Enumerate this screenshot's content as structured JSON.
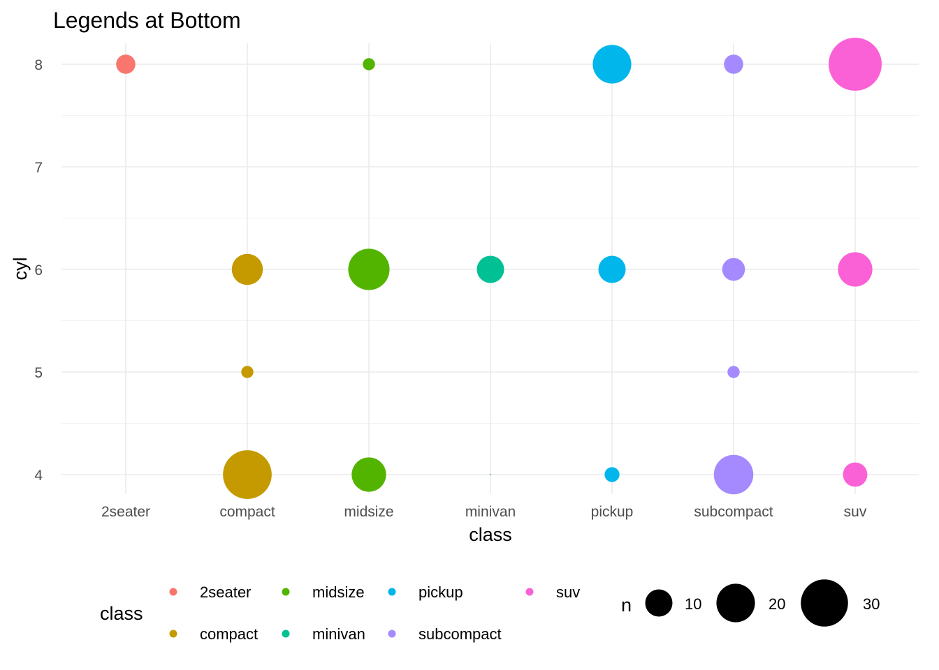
{
  "chart_data": {
    "type": "scatter",
    "title": "Legends at Bottom",
    "xlabel": "class",
    "ylabel": "cyl",
    "categories": [
      "2seater",
      "compact",
      "midsize",
      "minivan",
      "pickup",
      "subcompact",
      "suv"
    ],
    "yticks": [
      4,
      5,
      6,
      7,
      8
    ],
    "ylim": [
      3.8,
      8.2
    ],
    "grid": true,
    "legend_position": "bottom",
    "colors": {
      "2seater": "#F8766D",
      "compact": "#C49A00",
      "midsize": "#53B400",
      "minivan": "#00C094",
      "pickup": "#00B6EB",
      "subcompact": "#A58AFF",
      "suv": "#FB61D7"
    },
    "points": [
      {
        "class": "2seater",
        "cyl": 8,
        "n": 5
      },
      {
        "class": "compact",
        "cyl": 4,
        "n": 32
      },
      {
        "class": "compact",
        "cyl": 5,
        "n": 2
      },
      {
        "class": "compact",
        "cyl": 6,
        "n": 13
      },
      {
        "class": "midsize",
        "cyl": 4,
        "n": 16
      },
      {
        "class": "midsize",
        "cyl": 6,
        "n": 23
      },
      {
        "class": "midsize",
        "cyl": 8,
        "n": 2
      },
      {
        "class": "minivan",
        "cyl": 4,
        "n": 1
      },
      {
        "class": "minivan",
        "cyl": 6,
        "n": 10
      },
      {
        "class": "pickup",
        "cyl": 4,
        "n": 3
      },
      {
        "class": "pickup",
        "cyl": 6,
        "n": 10
      },
      {
        "class": "pickup",
        "cyl": 8,
        "n": 20
      },
      {
        "class": "subcompact",
        "cyl": 4,
        "n": 21
      },
      {
        "class": "subcompact",
        "cyl": 5,
        "n": 2
      },
      {
        "class": "subcompact",
        "cyl": 6,
        "n": 7
      },
      {
        "class": "subcompact",
        "cyl": 8,
        "n": 5
      },
      {
        "class": "suv",
        "cyl": 4,
        "n": 8
      },
      {
        "class": "suv",
        "cyl": 6,
        "n": 16
      },
      {
        "class": "suv",
        "cyl": 8,
        "n": 38
      }
    ],
    "color_legend": {
      "title": "class",
      "entries": [
        "2seater",
        "compact",
        "midsize",
        "minivan",
        "pickup",
        "subcompact",
        "suv"
      ]
    },
    "size_legend": {
      "title": "n",
      "entries": [
        10,
        20,
        30
      ]
    }
  }
}
